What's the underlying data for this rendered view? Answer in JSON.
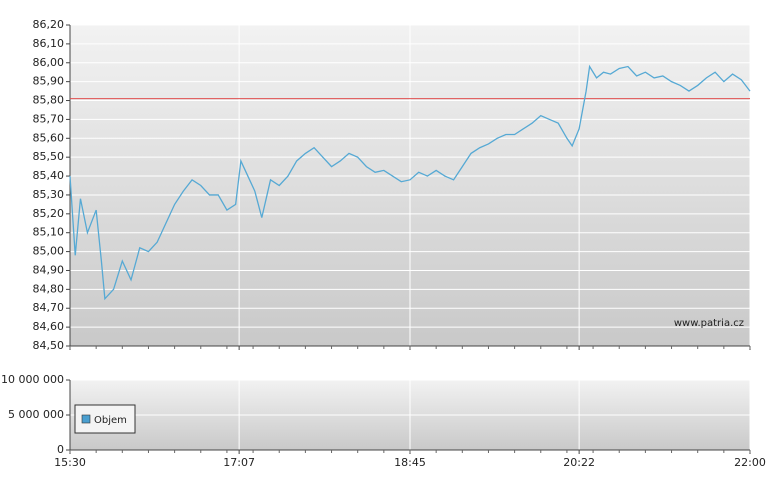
{
  "chart_data": [
    {
      "type": "line",
      "x": [
        "15:30",
        "15:33",
        "15:36",
        "15:40",
        "15:45",
        "15:48",
        "15:50",
        "15:55",
        "16:00",
        "16:05",
        "16:10",
        "16:15",
        "16:20",
        "16:25",
        "16:30",
        "16:35",
        "16:40",
        "16:45",
        "16:50",
        "16:55",
        "17:00",
        "17:05",
        "17:08",
        "17:12",
        "17:16",
        "17:20",
        "17:25",
        "17:30",
        "17:35",
        "17:40",
        "17:45",
        "17:50",
        "17:55",
        "18:00",
        "18:05",
        "18:10",
        "18:15",
        "18:20",
        "18:25",
        "18:30",
        "18:35",
        "18:40",
        "18:45",
        "18:50",
        "18:55",
        "19:00",
        "19:05",
        "19:10",
        "19:15",
        "19:20",
        "19:25",
        "19:30",
        "19:35",
        "19:40",
        "19:45",
        "19:50",
        "19:55",
        "20:00",
        "20:05",
        "20:10",
        "20:15",
        "20:18",
        "20:22",
        "20:26",
        "20:28",
        "20:32",
        "20:36",
        "20:40",
        "20:45",
        "20:50",
        "20:55",
        "21:00",
        "21:05",
        "21:10",
        "21:15",
        "21:20",
        "21:25",
        "21:30",
        "21:35",
        "21:40",
        "21:45",
        "21:50",
        "21:55",
        "22:00"
      ],
      "series": [
        {
          "color": "#56a9d4",
          "values": [
            85.4,
            84.98,
            85.28,
            85.1,
            85.22,
            84.95,
            84.75,
            84.8,
            84.95,
            84.85,
            85.02,
            85.0,
            85.05,
            85.15,
            85.25,
            85.32,
            85.38,
            85.35,
            85.3,
            85.3,
            85.22,
            85.25,
            85.48,
            85.4,
            85.32,
            85.18,
            85.38,
            85.35,
            85.4,
            85.48,
            85.52,
            85.55,
            85.5,
            85.45,
            85.48,
            85.52,
            85.5,
            85.45,
            85.42,
            85.43,
            85.4,
            85.37,
            85.38,
            85.42,
            85.4,
            85.43,
            85.4,
            85.38,
            85.45,
            85.52,
            85.55,
            85.57,
            85.6,
            85.62,
            85.62,
            85.65,
            85.68,
            85.72,
            85.7,
            85.68,
            85.6,
            85.56,
            85.65,
            85.85,
            85.98,
            85.92,
            85.95,
            85.94,
            85.97,
            85.98,
            85.93,
            85.95,
            85.92,
            85.93,
            85.9,
            85.88,
            85.85,
            85.88,
            85.92,
            85.95,
            85.9,
            85.94,
            85.91,
            85.85
          ]
        }
      ],
      "reference_line": {
        "value": 85.81,
        "color": "#e05050"
      },
      "xlim": [
        "15:30",
        "22:00"
      ],
      "xticks": [
        "15:30",
        "17:07",
        "18:45",
        "20:22",
        "22:00"
      ],
      "ylim": [
        84.5,
        86.2
      ],
      "yticks": [
        {
          "value": 84.5,
          "label": "84,50"
        },
        {
          "value": 84.6,
          "label": "84,60"
        },
        {
          "value": 84.7,
          "label": "84,70"
        },
        {
          "value": 84.8,
          "label": "84,80"
        },
        {
          "value": 84.9,
          "label": "84,90"
        },
        {
          "value": 85.0,
          "label": "85,00"
        },
        {
          "value": 85.1,
          "label": "85,10"
        },
        {
          "value": 85.2,
          "label": "85,20"
        },
        {
          "value": 85.3,
          "label": "85,30"
        },
        {
          "value": 85.4,
          "label": "85,40"
        },
        {
          "value": 85.5,
          "label": "85,50"
        },
        {
          "value": 85.6,
          "label": "85,60"
        },
        {
          "value": 85.7,
          "label": "85,70"
        },
        {
          "value": 85.8,
          "label": "85,80"
        },
        {
          "value": 85.9,
          "label": "85,90"
        },
        {
          "value": 86.0,
          "label": "86,00"
        },
        {
          "value": 86.1,
          "label": "86,10"
        },
        {
          "value": 86.2,
          "label": "86,20"
        }
      ],
      "grid": true,
      "annotation": "www.patria.cz"
    },
    {
      "type": "bar",
      "series": [
        {
          "name": "Objem",
          "color": "#4a9fd0",
          "values": []
        }
      ],
      "ylim": [
        0,
        10000000
      ],
      "yticks": [
        0,
        {
          "value": 5000000,
          "label": "5 000 000"
        },
        {
          "value": 10000000,
          "label": "10 000 000"
        }
      ],
      "grid": true,
      "legend": "lower left"
    }
  ]
}
